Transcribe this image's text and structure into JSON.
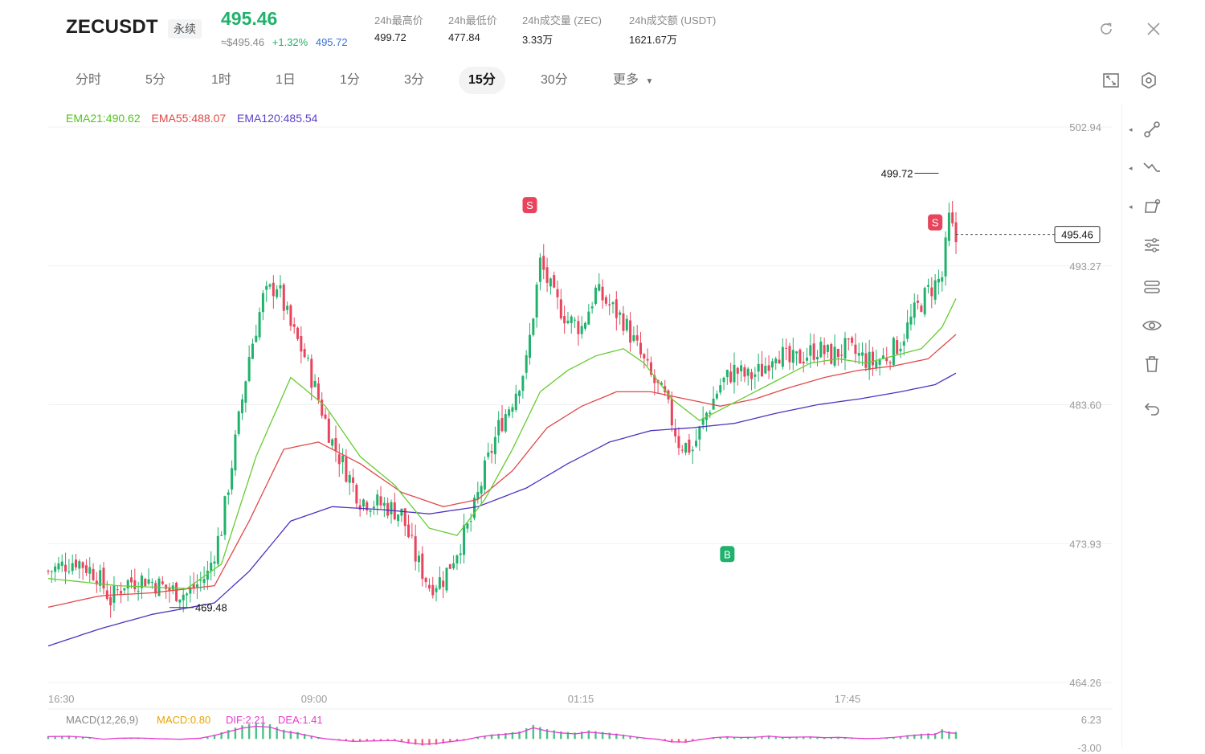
{
  "header": {
    "symbol": "ZECUSDT",
    "contract_type": "永续",
    "last_price": "495.46",
    "usd_approx": "≈$495.46",
    "change_pct": "+1.32%",
    "mark_price": "495.72",
    "stats": [
      {
        "label": "24h最高价",
        "value": "499.72"
      },
      {
        "label": "24h最低价",
        "value": "477.84"
      },
      {
        "label": "24h成交量 (ZEC)",
        "value": "3.33万"
      },
      {
        "label": "24h成交额 (USDT)",
        "value": "1621.67万"
      }
    ],
    "icons": [
      "refresh-icon",
      "close-icon"
    ]
  },
  "timeframes": [
    "分时",
    "5分",
    "1时",
    "1日",
    "1分",
    "3分",
    "15分",
    "30分",
    "更多"
  ],
  "active_timeframe": "15分",
  "chart_icons": [
    "fullscreen-icon",
    "settings-icon"
  ],
  "ema_legend": [
    {
      "text": "EMA21:490.62",
      "color": "#52c41a"
    },
    {
      "text": "EMA55:488.07",
      "color": "#e04848"
    },
    {
      "text": "EMA120:485.54",
      "color": "#5b3fc8"
    }
  ],
  "colors": {
    "up": "#20b26c",
    "down": "#e8455d",
    "ema21": "#66cc33",
    "ema55": "#e04848",
    "ema120": "#5030c0",
    "macd": "#e83bd0"
  },
  "chart_data": {
    "type": "candlestick",
    "price_axis_ticks": [
      "502.94",
      "493.27",
      "483.60",
      "473.93",
      "464.26"
    ],
    "ylim": [
      464.26,
      502.94
    ],
    "time_axis_ticks": [
      "16:30",
      "09:00",
      "01:15",
      "17:45"
    ],
    "current_price": "495.46",
    "high_annotation": "499.72",
    "low_annotation": "469.48",
    "signals": [
      {
        "label": "S",
        "type": "sell"
      },
      {
        "label": "B",
        "type": "buy"
      },
      {
        "label": "S",
        "type": "sell"
      }
    ],
    "close_path": [
      [
        0,
        472.0
      ],
      [
        8,
        472.8
      ],
      [
        14,
        471.8
      ],
      [
        18,
        470.0
      ],
      [
        22,
        471.2
      ],
      [
        28,
        471.5
      ],
      [
        34,
        470.8
      ],
      [
        40,
        470.4
      ],
      [
        46,
        471.8
      ],
      [
        50,
        475.0
      ],
      [
        54,
        481.0
      ],
      [
        58,
        487.0
      ],
      [
        62,
        491.0
      ],
      [
        66,
        492.0
      ],
      [
        70,
        489.0
      ],
      [
        74,
        487.0
      ],
      [
        78,
        484.0
      ],
      [
        82,
        481.0
      ],
      [
        86,
        479.0
      ],
      [
        90,
        477.0
      ],
      [
        94,
        476.8
      ],
      [
        98,
        476.5
      ],
      [
        102,
        476.0
      ],
      [
        106,
        473.0
      ],
      [
        110,
        471.0
      ],
      [
        114,
        471.5
      ],
      [
        118,
        473.5
      ],
      [
        122,
        475.5
      ],
      [
        126,
        479.0
      ],
      [
        130,
        482.0
      ],
      [
        134,
        484.0
      ],
      [
        138,
        486.5
      ],
      [
        142,
        493.5
      ],
      [
        146,
        491.0
      ],
      [
        150,
        489.5
      ],
      [
        154,
        489.0
      ],
      [
        158,
        491.5
      ],
      [
        162,
        490.5
      ],
      [
        166,
        489.5
      ],
      [
        170,
        487.5
      ],
      [
        174,
        485.5
      ],
      [
        178,
        484.0
      ],
      [
        182,
        481.0
      ],
      [
        186,
        480.5
      ],
      [
        190,
        483.0
      ],
      [
        194,
        485.0
      ],
      [
        198,
        486.0
      ],
      [
        202,
        485.5
      ],
      [
        206,
        486.0
      ],
      [
        210,
        487.5
      ],
      [
        214,
        486.5
      ],
      [
        218,
        487.0
      ],
      [
        222,
        487.5
      ],
      [
        226,
        487.0
      ],
      [
        230,
        487.5
      ],
      [
        234,
        487.0
      ],
      [
        238,
        486.5
      ],
      [
        242,
        487.0
      ],
      [
        246,
        488.0
      ],
      [
        250,
        490.0
      ],
      [
        254,
        491.5
      ],
      [
        258,
        492.5
      ],
      [
        260,
        496.5
      ],
      [
        262,
        495.0
      ]
    ],
    "ema21_path": [
      [
        0,
        471.5
      ],
      [
        20,
        471.0
      ],
      [
        40,
        470.8
      ],
      [
        50,
        472.5
      ],
      [
        60,
        480.0
      ],
      [
        70,
        485.5
      ],
      [
        80,
        483.5
      ],
      [
        90,
        480.0
      ],
      [
        100,
        478.0
      ],
      [
        110,
        475.0
      ],
      [
        118,
        474.5
      ],
      [
        126,
        477.0
      ],
      [
        134,
        480.5
      ],
      [
        142,
        484.5
      ],
      [
        150,
        486.0
      ],
      [
        158,
        487.0
      ],
      [
        166,
        487.5
      ],
      [
        172,
        486.5
      ],
      [
        180,
        484.0
      ],
      [
        188,
        482.5
      ],
      [
        196,
        483.5
      ],
      [
        204,
        484.5
      ],
      [
        212,
        485.5
      ],
      [
        220,
        486.5
      ],
      [
        228,
        486.8
      ],
      [
        236,
        486.5
      ],
      [
        244,
        487.0
      ],
      [
        252,
        487.5
      ],
      [
        258,
        489.0
      ],
      [
        262,
        491.0
      ]
    ],
    "ema55_path": [
      [
        0,
        469.5
      ],
      [
        15,
        470.3
      ],
      [
        30,
        470.5
      ],
      [
        48,
        471.0
      ],
      [
        58,
        475.5
      ],
      [
        68,
        480.5
      ],
      [
        78,
        481.0
      ],
      [
        90,
        479.5
      ],
      [
        102,
        477.5
      ],
      [
        114,
        476.5
      ],
      [
        124,
        477.0
      ],
      [
        134,
        479.0
      ],
      [
        144,
        482.0
      ],
      [
        154,
        483.5
      ],
      [
        164,
        484.5
      ],
      [
        174,
        484.5
      ],
      [
        184,
        484.0
      ],
      [
        194,
        483.5
      ],
      [
        204,
        484.0
      ],
      [
        214,
        484.8
      ],
      [
        224,
        485.5
      ],
      [
        234,
        486.0
      ],
      [
        244,
        486.3
      ],
      [
        254,
        486.8
      ],
      [
        262,
        488.5
      ]
    ],
    "ema120_path": [
      [
        0,
        466.8
      ],
      [
        15,
        468.0
      ],
      [
        30,
        469.0
      ],
      [
        48,
        469.8
      ],
      [
        58,
        472.0
      ],
      [
        70,
        475.5
      ],
      [
        82,
        476.5
      ],
      [
        96,
        476.3
      ],
      [
        110,
        476.0
      ],
      [
        124,
        476.5
      ],
      [
        138,
        477.8
      ],
      [
        150,
        479.5
      ],
      [
        162,
        481.0
      ],
      [
        174,
        481.8
      ],
      [
        186,
        482.0
      ],
      [
        198,
        482.3
      ],
      [
        210,
        483.0
      ],
      [
        222,
        483.6
      ],
      [
        234,
        484.0
      ],
      [
        246,
        484.5
      ],
      [
        256,
        485.0
      ],
      [
        262,
        485.8
      ]
    ],
    "macd": {
      "label": "MACD(12,26,9)",
      "macd_value": "MACD:0.80",
      "dif": "DIF:2.21",
      "dea": "DEA:1.41",
      "ticks": [
        "6.23",
        "-3.00"
      ],
      "ylim": [
        -3.0,
        6.23
      ]
    }
  },
  "toolbar": [
    {
      "name": "trendline-tool-icon",
      "has_arrow": true
    },
    {
      "name": "fib-tool-icon",
      "has_arrow": true
    },
    {
      "name": "shape-tool-icon",
      "has_arrow": true
    },
    {
      "name": "indicator-settings-icon",
      "has_arrow": false
    },
    {
      "name": "overlay-settings-icon",
      "has_arrow": false
    },
    {
      "name": "visibility-icon",
      "has_arrow": false
    },
    {
      "name": "delete-icon",
      "has_arrow": false
    },
    {
      "name": "undo-icon",
      "has_arrow": false
    }
  ]
}
